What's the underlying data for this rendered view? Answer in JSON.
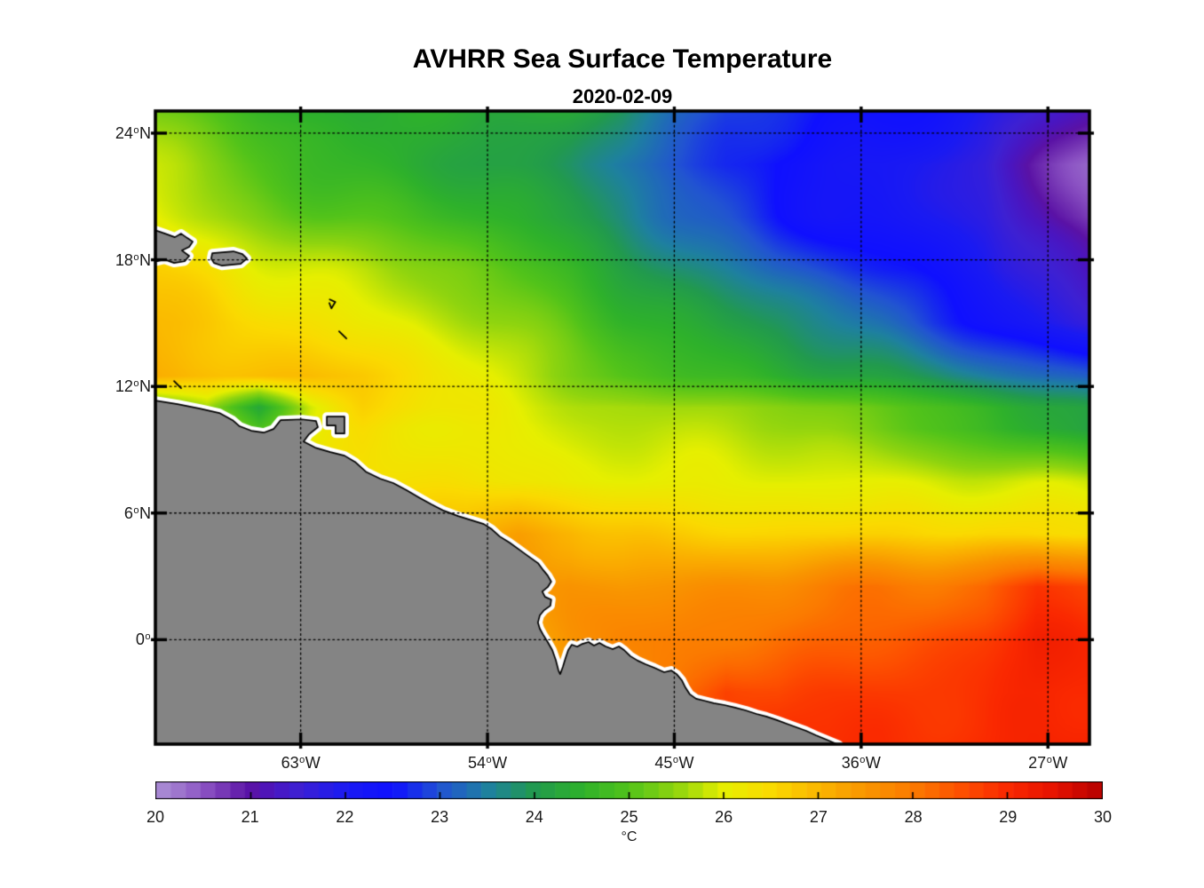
{
  "title": "AVHRR Sea Surface Temperature",
  "subtitle": "2020-02-09",
  "axes": {
    "deg_symbol": "o",
    "x_ticks": [
      {
        "num": "63",
        "dir": "W",
        "lon_w": 63
      },
      {
        "num": "54",
        "dir": "W",
        "lon_w": 54
      },
      {
        "num": "45",
        "dir": "W",
        "lon_w": 45
      },
      {
        "num": "36",
        "dir": "W",
        "lon_w": 36
      },
      {
        "num": "27",
        "dir": "W",
        "lon_w": 27
      }
    ],
    "y_ticks": [
      {
        "num": "24",
        "dir": "N",
        "lat": 24
      },
      {
        "num": "18",
        "dir": "N",
        "lat": 18
      },
      {
        "num": "12",
        "dir": "N",
        "lat": 12
      },
      {
        "num": "6",
        "dir": "N",
        "lat": 6
      },
      {
        "num": "0",
        "dir": "",
        "lat": 0
      }
    ]
  },
  "colorbar": {
    "min": 20,
    "max": 30,
    "tick_labels": [
      "20",
      "21",
      "22",
      "23",
      "24",
      "25",
      "26",
      "27",
      "28",
      "29",
      "30"
    ],
    "unit": "°C"
  },
  "chart_data": {
    "type": "heatmap",
    "title": "AVHRR Sea Surface Temperature",
    "subtitle": "2020-02-09",
    "value_units": "°C",
    "value_range": [
      20,
      30
    ],
    "lon_axis": {
      "range_deg_w": [
        70,
        25
      ],
      "ticks_deg_w": [
        63,
        54,
        45,
        36,
        27
      ]
    },
    "lat_axis": {
      "range_deg_n": [
        25.05,
        -4.95
      ],
      "ticks_deg_n": [
        24,
        18,
        12,
        6,
        0
      ]
    },
    "grid_lons_w": [
      70,
      67.5,
      65,
      62.5,
      60,
      57.5,
      55,
      52.5,
      50,
      47.5,
      45,
      42.5,
      40,
      37.5,
      35,
      32.5,
      30,
      27.5,
      25
    ],
    "grid_lats_n": [
      25,
      22.5,
      20,
      17.5,
      15,
      12.5,
      11,
      10,
      7.5,
      5,
      2.5,
      0,
      -2.5,
      -5
    ],
    "sst_c": [
      [
        25.2,
        24.9,
        24.6,
        24.4,
        24.3,
        24.3,
        24.3,
        24.3,
        24.2,
        24.0,
        23.4,
        22.9,
        22.7,
        22.5,
        22.4,
        22.2,
        21.9,
        21.5,
        21.2
      ],
      [
        25.7,
        25.4,
        25.1,
        24.8,
        24.6,
        24.4,
        24.3,
        24.1,
        23.9,
        23.5,
        23.1,
        22.7,
        22.4,
        22.2,
        22.1,
        21.9,
        21.7,
        21.1,
        20.5
      ],
      [
        26.1,
        25.8,
        25.5,
        25.2,
        25.0,
        24.8,
        24.6,
        24.4,
        24.1,
        23.8,
        23.4,
        23.0,
        22.6,
        22.3,
        22.2,
        22.0,
        21.8,
        21.3,
        20.6
      ],
      [
        26.6,
        26.4,
        26.1,
        25.9,
        25.7,
        25.5,
        25.3,
        25.0,
        24.7,
        24.3,
        23.9,
        23.5,
        23.1,
        22.8,
        22.5,
        22.2,
        22.0,
        21.6,
        21.1
      ],
      [
        26.9,
        26.8,
        26.6,
        26.4,
        26.1,
        25.9,
        25.6,
        25.3,
        25.0,
        24.6,
        24.3,
        24.0,
        23.8,
        23.5,
        23.2,
        22.8,
        22.5,
        22.1,
        21.7
      ],
      [
        27.0,
        27.0,
        26.9,
        26.8,
        26.6,
        26.3,
        26.0,
        25.7,
        25.4,
        25.1,
        24.9,
        24.7,
        24.5,
        24.3,
        24.1,
        23.9,
        23.6,
        23.3,
        23.0
      ],
      [
        24.8,
        25.6,
        24.3,
        25.8,
        26.5,
        26.4,
        26.2,
        26.0,
        25.9,
        25.8,
        25.7,
        25.6,
        25.5,
        25.3,
        25.1,
        24.9,
        24.7,
        24.4,
        24.1
      ],
      [
        26.0,
        26.0,
        25.0,
        26.0,
        26.4,
        26.3,
        26.2,
        26.1,
        26.0,
        25.9,
        25.8,
        25.7,
        25.6,
        25.4,
        25.2,
        25.0,
        24.8,
        24.5,
        24.2
      ],
      [
        26.8,
        26.8,
        26.7,
        26.6,
        26.5,
        26.4,
        26.3,
        26.2,
        26.1,
        26.1,
        26.0,
        26.0,
        26.0,
        26.0,
        26.0,
        26.0,
        26.0,
        25.9,
        25.8
      ],
      [
        27.0,
        27.0,
        27.0,
        26.9,
        26.8,
        26.7,
        26.8,
        27.3,
        27.2,
        26.9,
        26.7,
        26.6,
        26.5,
        26.5,
        26.5,
        26.5,
        26.5,
        26.4,
        26.3
      ],
      [
        27.2,
        27.2,
        27.2,
        27.1,
        27.0,
        27.0,
        27.1,
        27.5,
        27.6,
        27.4,
        27.4,
        27.5,
        27.6,
        27.8,
        28.0,
        28.1,
        28.3,
        28.9,
        28.7
      ],
      [
        27.3,
        27.3,
        27.3,
        27.2,
        27.2,
        27.1,
        27.1,
        27.2,
        27.6,
        27.8,
        27.9,
        28.0,
        28.2,
        28.3,
        28.5,
        28.7,
        28.9,
        29.2,
        29.0
      ],
      [
        27.5,
        27.5,
        27.5,
        27.5,
        27.5,
        27.5,
        27.5,
        27.5,
        27.6,
        27.8,
        28.0,
        28.8,
        28.6,
        28.7,
        28.8,
        28.9,
        28.9,
        29.0,
        29.1
      ],
      [
        28.0,
        28.0,
        28.0,
        28.0,
        28.0,
        28.0,
        28.0,
        28.0,
        28.0,
        28.2,
        28.4,
        28.6,
        28.9,
        28.9,
        29.0,
        29.0,
        29.0,
        29.1,
        29.1
      ]
    ],
    "colormap_stops": [
      [
        20.0,
        "#ac90d6"
      ],
      [
        20.25,
        "#9d74cc"
      ],
      [
        20.5,
        "#8c54c4"
      ],
      [
        20.75,
        "#7231b2"
      ],
      [
        21.0,
        "#5a12a6"
      ],
      [
        21.25,
        "#4a15c0"
      ],
      [
        21.5,
        "#3e20d2"
      ],
      [
        22.0,
        "#1a1af2"
      ],
      [
        22.5,
        "#0f10ff"
      ],
      [
        23.0,
        "#2153d2"
      ],
      [
        23.5,
        "#1e80a0"
      ],
      [
        24.0,
        "#219a4e"
      ],
      [
        24.5,
        "#2eb12b"
      ],
      [
        25.0,
        "#52c31a"
      ],
      [
        25.5,
        "#8fd40f"
      ],
      [
        26.0,
        "#e6ef00"
      ],
      [
        26.5,
        "#fada00"
      ],
      [
        27.0,
        "#fab600"
      ],
      [
        27.5,
        "#f99500"
      ],
      [
        28.0,
        "#fb7a00"
      ],
      [
        28.5,
        "#fd5100"
      ],
      [
        29.0,
        "#fa2800"
      ],
      [
        29.5,
        "#e61200"
      ],
      [
        30.0,
        "#b50000"
      ]
    ],
    "land_color": "#848484",
    "coast_color": "#000000",
    "nodata_rim_color": "#ffffff",
    "land_polygons_lonw_lat": {
      "south_america": [
        [
          70.3,
          11.3
        ],
        [
          70,
          11.33
        ],
        [
          68.93,
          11.16
        ],
        [
          67.86,
          10.95
        ],
        [
          66.92,
          10.74
        ],
        [
          66.28,
          10.4
        ],
        [
          65.94,
          10.11
        ],
        [
          65.38,
          9.9
        ],
        [
          64.78,
          9.81
        ],
        [
          64.31,
          9.98
        ],
        [
          63.97,
          10.4
        ],
        [
          62.94,
          10.44
        ],
        [
          62.26,
          10.36
        ],
        [
          62.17,
          10.07
        ],
        [
          62.6,
          9.73
        ],
        [
          62.86,
          9.39
        ],
        [
          62.3,
          9.1
        ],
        [
          61.57,
          8.89
        ],
        [
          60.89,
          8.72
        ],
        [
          60.38,
          8.42
        ],
        [
          59.86,
          7.96
        ],
        [
          59.18,
          7.63
        ],
        [
          58.54,
          7.42
        ],
        [
          57.9,
          7.08
        ],
        [
          57.3,
          6.74
        ],
        [
          56.7,
          6.41
        ],
        [
          56.1,
          6.11
        ],
        [
          55.42,
          5.86
        ],
        [
          54.73,
          5.65
        ],
        [
          54.18,
          5.48
        ],
        [
          53.79,
          5.23
        ],
        [
          53.41,
          4.89
        ],
        [
          52.94,
          4.6
        ],
        [
          52.46,
          4.26
        ],
        [
          51.99,
          3.92
        ],
        [
          51.57,
          3.63
        ],
        [
          51.31,
          3.29
        ],
        [
          51.1,
          3.04
        ],
        [
          50.93,
          2.75
        ],
        [
          51.1,
          2.49
        ],
        [
          51.36,
          2.28
        ],
        [
          51.23,
          2.03
        ],
        [
          50.93,
          1.9
        ],
        [
          50.97,
          1.61
        ],
        [
          51.27,
          1.4
        ],
        [
          51.48,
          1.15
        ],
        [
          51.57,
          0.81
        ],
        [
          51.48,
          0.52
        ],
        [
          51.31,
          0.22
        ],
        [
          51.1,
          -0.11
        ],
        [
          50.88,
          -0.49
        ],
        [
          50.71,
          -0.96
        ],
        [
          50.58,
          -1.46
        ],
        [
          50.5,
          -1.63
        ],
        [
          50.37,
          -1.29
        ],
        [
          50.24,
          -0.87
        ],
        [
          50.11,
          -0.49
        ],
        [
          49.94,
          -0.24
        ],
        [
          49.68,
          -0.33
        ],
        [
          49.43,
          -0.2
        ],
        [
          49.13,
          -0.11
        ],
        [
          48.87,
          -0.28
        ],
        [
          48.61,
          -0.15
        ],
        [
          48.31,
          -0.32
        ],
        [
          47.97,
          -0.45
        ],
        [
          47.67,
          -0.32
        ],
        [
          47.42,
          -0.49
        ],
        [
          47.12,
          -0.78
        ],
        [
          46.77,
          -0.99
        ],
        [
          46.39,
          -1.16
        ],
        [
          45.96,
          -1.33
        ],
        [
          45.49,
          -1.54
        ],
        [
          45.15,
          -1.46
        ],
        [
          44.89,
          -1.63
        ],
        [
          44.64,
          -1.92
        ],
        [
          44.47,
          -2.26
        ],
        [
          44.25,
          -2.59
        ],
        [
          43.95,
          -2.8
        ],
        [
          43.57,
          -2.89
        ],
        [
          43.1,
          -3.01
        ],
        [
          42.58,
          -3.1
        ],
        [
          42.07,
          -3.22
        ],
        [
          41.56,
          -3.35
        ],
        [
          41.04,
          -3.52
        ],
        [
          40.57,
          -3.64
        ],
        [
          40.06,
          -3.81
        ],
        [
          39.59,
          -3.98
        ],
        [
          39.12,
          -4.15
        ],
        [
          38.65,
          -4.32
        ],
        [
          38.18,
          -4.53
        ],
        [
          37.66,
          -4.74
        ],
        [
          37.07,
          -4.99
        ],
        [
          36.9,
          -5.3
        ],
        [
          70.3,
          -5.3
        ]
      ],
      "hispaniola": [
        [
          70.3,
          19.45
        ],
        [
          70,
          19.4
        ],
        [
          69.53,
          19.24
        ],
        [
          69.06,
          19.07
        ],
        [
          68.76,
          19.24
        ],
        [
          68.46,
          19.03
        ],
        [
          68.2,
          18.86
        ],
        [
          68.37,
          18.61
        ],
        [
          68.72,
          18.44
        ],
        [
          68.37,
          18.18
        ],
        [
          68.59,
          17.93
        ],
        [
          69.1,
          17.85
        ],
        [
          69.57,
          18.02
        ],
        [
          69.91,
          17.93
        ],
        [
          70.3,
          18.1
        ]
      ],
      "puerto_rico": [
        [
          67.26,
          18.31
        ],
        [
          66.24,
          18.4
        ],
        [
          65.81,
          18.27
        ],
        [
          65.59,
          18.06
        ],
        [
          65.89,
          17.81
        ],
        [
          66.79,
          17.72
        ],
        [
          67.18,
          17.85
        ],
        [
          67.31,
          18.06
        ]
      ],
      "trinidad": [
        [
          61.74,
          10.57
        ],
        [
          60.89,
          10.57
        ],
        [
          60.89,
          9.77
        ],
        [
          61.32,
          9.77
        ],
        [
          61.32,
          10.15
        ],
        [
          61.74,
          10.15
        ]
      ]
    },
    "island_marks_lonw_lat": [
      [
        [
          61.6,
          16.12
        ],
        [
          61.33,
          16.0
        ],
        [
          61.52,
          15.7
        ],
        [
          61.62,
          15.95
        ]
      ],
      [
        [
          61.15,
          14.61
        ],
        [
          60.8,
          14.27
        ]
      ],
      [
        [
          69.1,
          12.25
        ],
        [
          68.76,
          11.92
        ]
      ]
    ]
  }
}
